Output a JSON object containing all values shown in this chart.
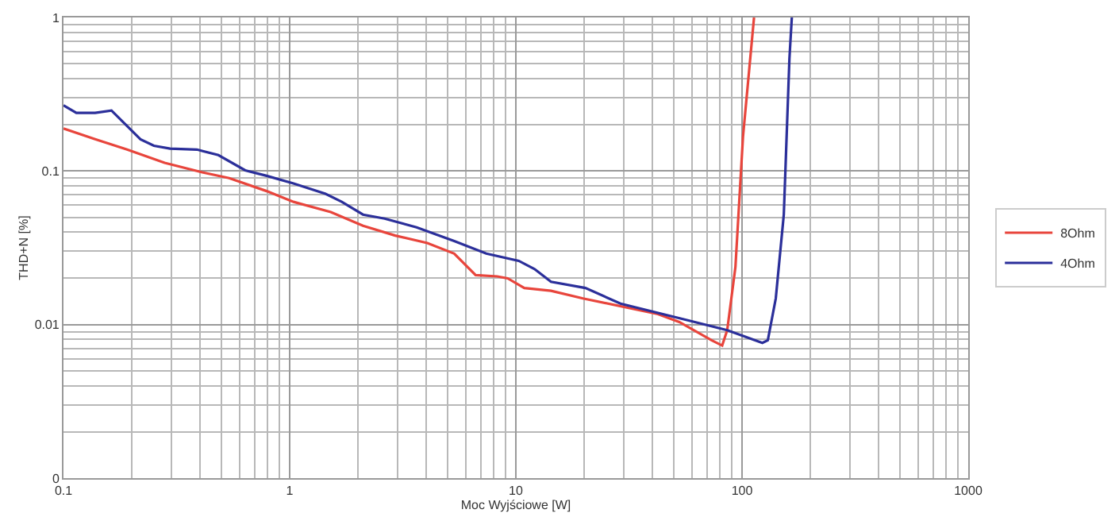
{
  "chart_data": {
    "type": "line",
    "xlabel": "Moc Wyjściowe [W]",
    "ylabel": "THD+N [%]",
    "log": "xy",
    "grid": true,
    "legend": "right",
    "marker": "none",
    "line_style": "solid",
    "xlim": [
      0.1,
      1000
    ],
    "xticks": [
      0.1,
      1,
      10,
      100,
      1000
    ],
    "ylim": [
      0.001,
      1
    ],
    "yticks": [
      {
        "value": 0.001,
        "label": "0"
      },
      0.01,
      0.1,
      1
    ],
    "series": [
      {
        "name": "8Ohm",
        "color": "#e8453c",
        "x": [
          0.1,
          0.138,
          0.191,
          0.28,
          0.411,
          0.54,
          0.791,
          1.04,
          1.52,
          2.11,
          2.93,
          4.06,
          5.34,
          6.64,
          8.26,
          9.2,
          10.9,
          14.3,
          19.8,
          42.5,
          52.8,
          73.3,
          81.7,
          86,
          93.5,
          101,
          113
        ],
        "values": [
          0.189,
          0.161,
          0.138,
          0.113,
          0.098,
          0.09,
          0.074,
          0.063,
          0.054,
          0.044,
          0.038,
          0.034,
          0.029,
          0.021,
          0.0206,
          0.02,
          0.0173,
          0.0166,
          0.0148,
          0.0117,
          0.0104,
          0.0079,
          0.0073,
          0.0092,
          0.0237,
          0.168,
          1.0
        ]
      },
      {
        "name": "4Ohm",
        "color": "#2b2f9a",
        "x": [
          0.1,
          0.114,
          0.138,
          0.163,
          0.186,
          0.219,
          0.251,
          0.296,
          0.389,
          0.484,
          0.636,
          0.791,
          1.04,
          1.44,
          1.7,
          2.11,
          2.63,
          3.64,
          5.34,
          7.4,
          10.3,
          12.1,
          14.3,
          20.3,
          29,
          55.7,
          86,
          123,
          130,
          141,
          153,
          162,
          166
        ],
        "values": [
          0.268,
          0.239,
          0.239,
          0.248,
          0.204,
          0.161,
          0.146,
          0.14,
          0.138,
          0.127,
          0.101,
          0.093,
          0.083,
          0.071,
          0.063,
          0.052,
          0.049,
          0.043,
          0.035,
          0.029,
          0.026,
          0.023,
          0.019,
          0.0173,
          0.0137,
          0.0108,
          0.0092,
          0.0076,
          0.0079,
          0.0148,
          0.052,
          0.54,
          1.0
        ]
      }
    ]
  }
}
